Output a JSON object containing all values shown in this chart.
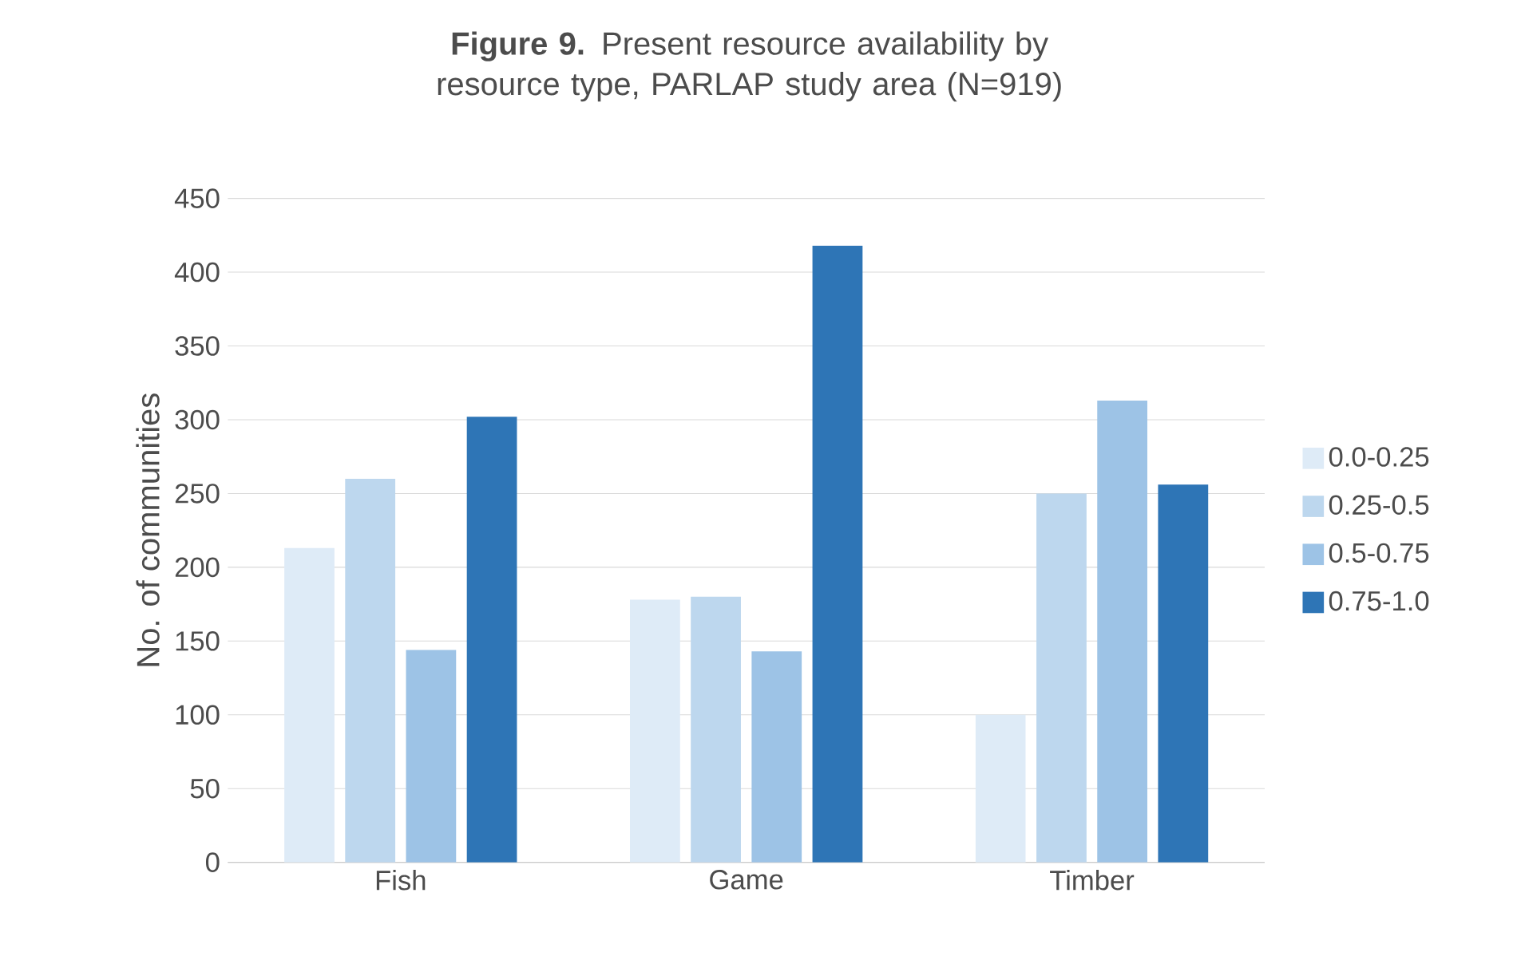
{
  "chart_data": {
    "type": "bar",
    "title": "**Figure 9.** Present resource availability by resource type, PARLAP study area (N=919)",
    "ylabel": "No. of communities",
    "categories": [
      "Fish",
      "Game",
      "Timber"
    ],
    "series": [
      {
        "name": "0.0-0.25",
        "color": "#deebf7",
        "values": [
          213,
          178,
          100
        ]
      },
      {
        "name": "0.25-0.5",
        "color": "#bdd7ee",
        "values": [
          260,
          180,
          250
        ]
      },
      {
        "name": "0.5-0.75",
        "color": "#9dc3e6",
        "values": [
          144,
          143,
          313
        ]
      },
      {
        "name": "0.75-1.0",
        "color": "#2e75b6",
        "values": [
          302,
          418,
          256
        ]
      }
    ],
    "ylim": [
      0,
      450
    ],
    "yticks": [
      0,
      50,
      100,
      150,
      200,
      250,
      300,
      350,
      400,
      450
    ],
    "grid": "y",
    "legend": "right"
  }
}
